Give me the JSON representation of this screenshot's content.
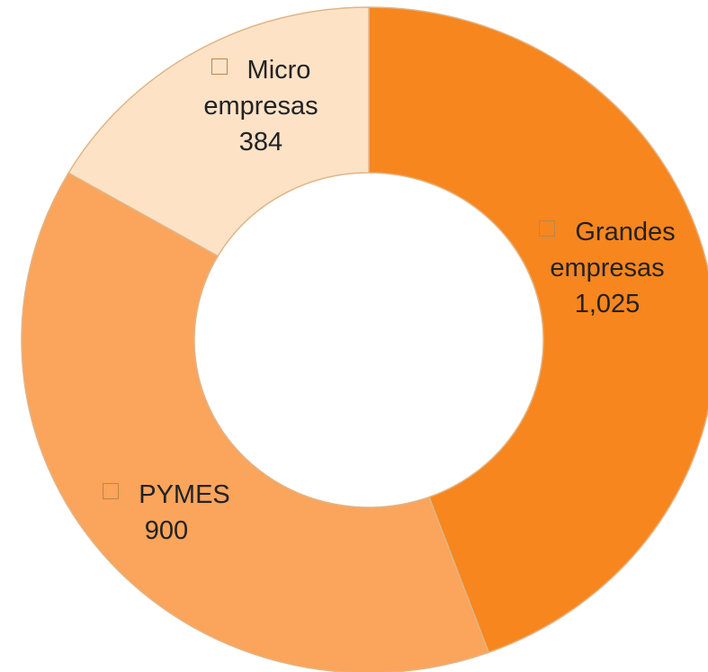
{
  "chart_data": {
    "type": "donut",
    "categories": [
      "Grandes empresas",
      "PYMES",
      "Micro empresas"
    ],
    "values": [
      1025,
      900,
      384
    ],
    "value_labels": [
      "1,025",
      "900",
      "384"
    ],
    "colors": [
      "#f7861e",
      "#fba45c",
      "#fde2c6"
    ]
  }
}
